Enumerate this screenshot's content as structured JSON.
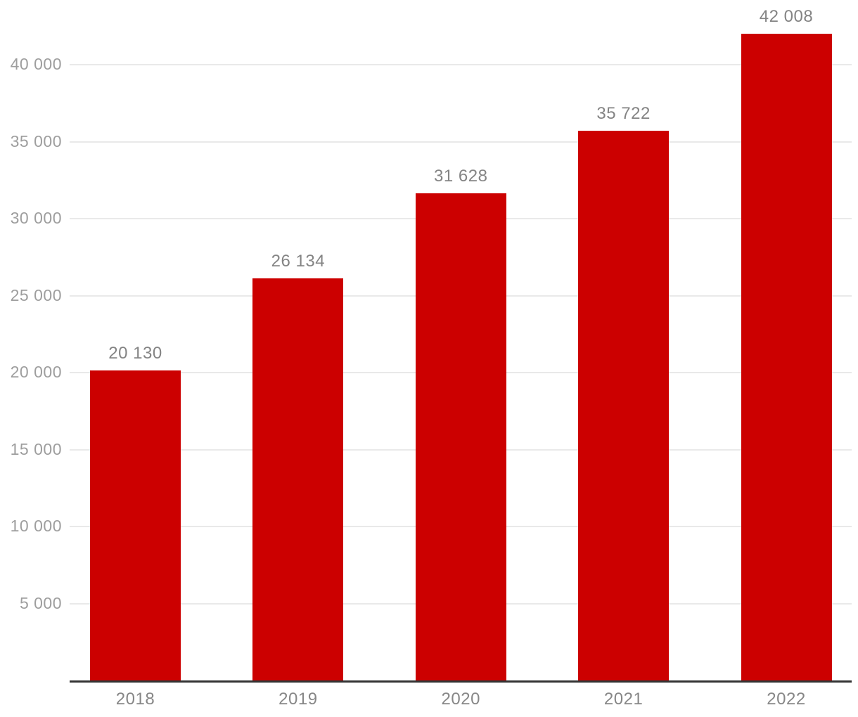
{
  "chart_data": {
    "type": "bar",
    "title": "",
    "xlabel": "",
    "ylabel": "",
    "categories": [
      "2018",
      "2019",
      "2020",
      "2021",
      "2022"
    ],
    "values": [
      20130,
      26134,
      31628,
      35722,
      42008
    ],
    "value_labels": [
      "20 130",
      "26 134",
      "31 628",
      "35 722",
      "42 008"
    ],
    "y_ticks": [
      {
        "value": 5000,
        "label": "5 000"
      },
      {
        "value": 10000,
        "label": "10 000"
      },
      {
        "value": 15000,
        "label": "15 000"
      },
      {
        "value": 20000,
        "label": "20 000"
      },
      {
        "value": 25000,
        "label": "25 000"
      },
      {
        "value": 30000,
        "label": "30 000"
      },
      {
        "value": 35000,
        "label": "35 000"
      },
      {
        "value": 40000,
        "label": "40 000"
      }
    ],
    "ylim": [
      0,
      44200
    ],
    "grid": true,
    "legend": false
  },
  "colors": {
    "bar": "#CC0000",
    "axis_line": "#333333",
    "gridline": "#E9E9E9",
    "tick_label": "#9E9E9E",
    "value_label": "#848484",
    "category_label": "#878787",
    "background": "#FFFFFF"
  }
}
